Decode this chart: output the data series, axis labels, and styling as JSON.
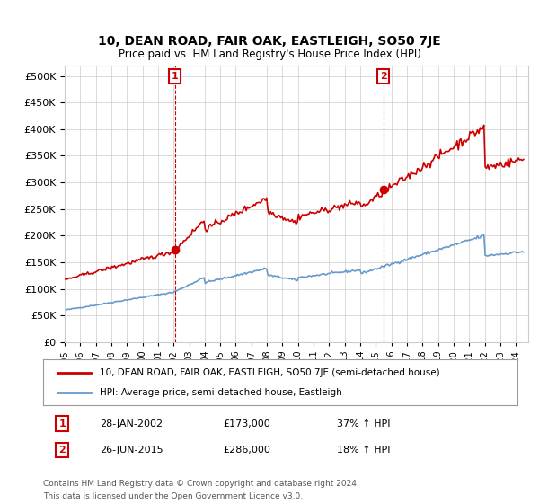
{
  "title": "10, DEAN ROAD, FAIR OAK, EASTLEIGH, SO50 7JE",
  "subtitle": "Price paid vs. HM Land Registry's House Price Index (HPI)",
  "sale1_date": "28-JAN-2002",
  "sale1_price": 173000,
  "sale1_label": "37% ↑ HPI",
  "sale2_date": "26-JUN-2015",
  "sale2_price": 286000,
  "sale2_label": "18% ↑ HPI",
  "legend_property": "10, DEAN ROAD, FAIR OAK, EASTLEIGH, SO50 7JE (semi-detached house)",
  "legend_hpi": "HPI: Average price, semi-detached house, Eastleigh",
  "footer": "Contains HM Land Registry data © Crown copyright and database right 2024.\nThis data is licensed under the Open Government Licence v3.0.",
  "property_line_color": "#cc0000",
  "hpi_line_color": "#6699cc",
  "vline_color": "#cc0000",
  "dot_color": "#cc0000",
  "background_color": "#ffffff",
  "grid_color": "#cccccc",
  "ylim": [
    0,
    520000
  ],
  "yticks": [
    0,
    50000,
    100000,
    150000,
    200000,
    250000,
    300000,
    350000,
    400000,
    450000,
    500000
  ],
  "sale1_year": 2002.08,
  "sale2_year": 2015.49
}
